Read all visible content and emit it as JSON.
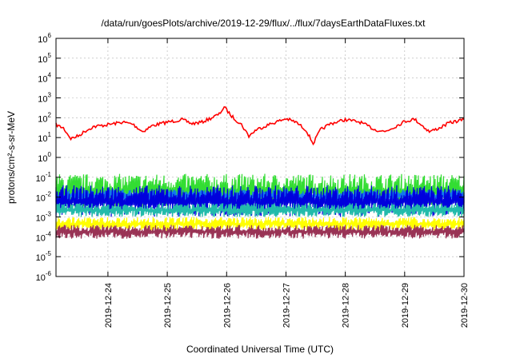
{
  "chart_data": {
    "type": "line",
    "title": "/data/run/goesPlots/archive/2019-12-29/flux/../flux/7daysEarthDataFluxes.txt",
    "xlabel": "Coordinated Universal Time (UTC)",
    "ylabel": "protons/cm²-s-sr-MeV",
    "yscale": "log",
    "ylim": [
      1e-06,
      1000000.0
    ],
    "y_ticks": [
      {
        "base": "10",
        "exp": "6"
      },
      {
        "base": "10",
        "exp": "5"
      },
      {
        "base": "10",
        "exp": "4"
      },
      {
        "base": "10",
        "exp": "3"
      },
      {
        "base": "10",
        "exp": "2"
      },
      {
        "base": "10",
        "exp": "1"
      },
      {
        "base": "10",
        "exp": "0"
      },
      {
        "base": "10",
        "exp": "-1"
      },
      {
        "base": "10",
        "exp": "-2"
      },
      {
        "base": "10",
        "exp": "-3"
      },
      {
        "base": "10",
        "exp": "-4"
      },
      {
        "base": "10",
        "exp": "-5"
      },
      {
        "base": "10",
        "exp": "-6"
      }
    ],
    "xlim": [
      "2019-12-23T03:00",
      "2019-12-30T00:00"
    ],
    "x_ticks": [
      "2019-12-24",
      "2019-12-25",
      "2019-12-26",
      "2019-12-27",
      "2019-12-28",
      "2019-12-29",
      "2019-12-30"
    ],
    "grid": true,
    "legend": "none",
    "series": [
      {
        "color": "#ff0000",
        "x": [
          "2019-12-23T03:00",
          "2019-12-23T06:00",
          "2019-12-23T09:00",
          "2019-12-23T12:00",
          "2019-12-23T15:00",
          "2019-12-23T18:00",
          "2019-12-24T00:00",
          "2019-12-24T06:00",
          "2019-12-24T10:00",
          "2019-12-24T14:00",
          "2019-12-24T18:00",
          "2019-12-25T00:00",
          "2019-12-25T06:00",
          "2019-12-25T10:00",
          "2019-12-25T14:00",
          "2019-12-25T18:00",
          "2019-12-25T21:00",
          "2019-12-25T23:00",
          "2019-12-26T02:00",
          "2019-12-26T06:00",
          "2019-12-26T09:00",
          "2019-12-26T12:00",
          "2019-12-26T18:00",
          "2019-12-27T00:00",
          "2019-12-27T04:00",
          "2019-12-27T08:00",
          "2019-12-27T11:00",
          "2019-12-27T14:00",
          "2019-12-27T18:00",
          "2019-12-28T00:00",
          "2019-12-28T06:00",
          "2019-12-28T12:00",
          "2019-12-28T16:00",
          "2019-12-28T20:00",
          "2019-12-29T00:00",
          "2019-12-29T04:00",
          "2019-12-29T10:00",
          "2019-12-29T14:00",
          "2019-12-29T18:00",
          "2019-12-30T00:00"
        ],
        "y": [
          45,
          30,
          9,
          12,
          22,
          35,
          45,
          60,
          48,
          20,
          40,
          60,
          80,
          50,
          60,
          100,
          150,
          350,
          120,
          45,
          12,
          25,
          50,
          90,
          60,
          25,
          5,
          25,
          50,
          80,
          60,
          25,
          20,
          35,
          65,
          85,
          20,
          30,
          55,
          80
        ]
      },
      {
        "color": "#33dd33",
        "x": [
          "2019-12-23T03:00",
          "2019-12-30T00:00"
        ],
        "y": [
          0.1,
          0.1
        ],
        "band": [
          0.003,
          0.15
        ]
      },
      {
        "color": "#1177ee",
        "x": [
          "2019-12-23T03:00",
          "2019-12-30T00:00"
        ],
        "y": [
          0.012,
          0.012
        ],
        "band": [
          0.005,
          0.025
        ]
      },
      {
        "color": "#0000dd",
        "x": [
          "2019-12-23T03:00",
          "2019-12-30T00:00"
        ],
        "y": [
          0.01,
          0.01
        ],
        "band": [
          0.001,
          0.04
        ]
      },
      {
        "color": "#22bbaa",
        "x": [
          "2019-12-23T03:00",
          "2019-12-30T00:00"
        ],
        "y": [
          0.002,
          0.002
        ],
        "band": [
          0.001,
          0.005
        ]
      },
      {
        "color": "#ffff00",
        "x": [
          "2019-12-23T03:00",
          "2019-12-30T00:00"
        ],
        "y": [
          0.0005,
          0.0005
        ],
        "band": [
          0.0002,
          0.001
        ]
      },
      {
        "color": "#993355",
        "x": [
          "2019-12-23T03:00",
          "2019-12-30T00:00"
        ],
        "y": [
          0.00025,
          0.00025
        ],
        "band": [
          8e-05,
          0.0004
        ]
      }
    ]
  }
}
